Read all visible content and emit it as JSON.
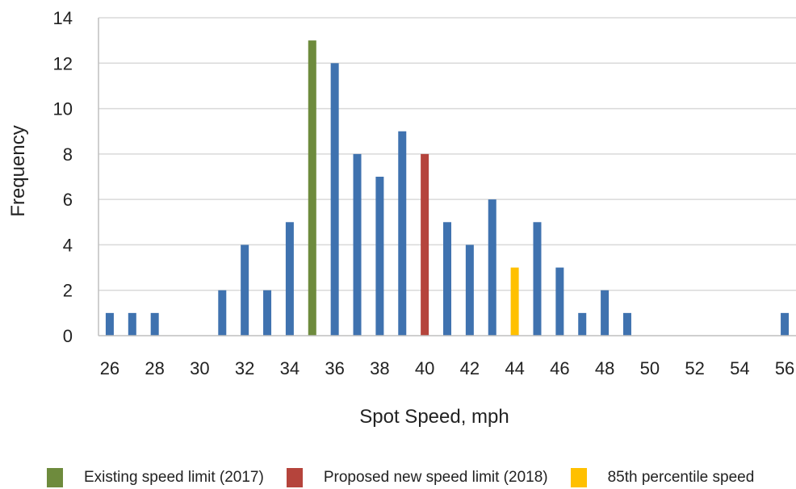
{
  "chart_data": {
    "type": "bar",
    "xlabel": "Spot Speed, mph",
    "ylabel": "Frequency",
    "ylim": [
      0,
      14
    ],
    "yticks": [
      0,
      2,
      4,
      6,
      8,
      10,
      12,
      14
    ],
    "xlim": [
      25.5,
      56.5
    ],
    "xticks": [
      26,
      28,
      30,
      32,
      34,
      36,
      38,
      40,
      42,
      44,
      46,
      48,
      50,
      52,
      54,
      56
    ],
    "grid": true,
    "legend_position": "bottom",
    "colors": {
      "default": "#3f72af",
      "existing": "#6e8b3d",
      "proposed": "#b5443c",
      "percentile": "#ffc000",
      "grid": "#d9d9d9",
      "axis": "#bfbfbf"
    },
    "bars": [
      {
        "x": 26,
        "y": 1,
        "cat": "default"
      },
      {
        "x": 27,
        "y": 1,
        "cat": "default"
      },
      {
        "x": 28,
        "y": 1,
        "cat": "default"
      },
      {
        "x": 31,
        "y": 2,
        "cat": "default"
      },
      {
        "x": 32,
        "y": 4,
        "cat": "default"
      },
      {
        "x": 33,
        "y": 2,
        "cat": "default"
      },
      {
        "x": 34,
        "y": 5,
        "cat": "default"
      },
      {
        "x": 35,
        "y": 13,
        "cat": "existing"
      },
      {
        "x": 36,
        "y": 12,
        "cat": "default"
      },
      {
        "x": 37,
        "y": 8,
        "cat": "default"
      },
      {
        "x": 38,
        "y": 7,
        "cat": "default"
      },
      {
        "x": 39,
        "y": 9,
        "cat": "default"
      },
      {
        "x": 40,
        "y": 8,
        "cat": "proposed"
      },
      {
        "x": 41,
        "y": 5,
        "cat": "default"
      },
      {
        "x": 42,
        "y": 4,
        "cat": "default"
      },
      {
        "x": 43,
        "y": 6,
        "cat": "default"
      },
      {
        "x": 44,
        "y": 3,
        "cat": "percentile"
      },
      {
        "x": 45,
        "y": 5,
        "cat": "default"
      },
      {
        "x": 46,
        "y": 3,
        "cat": "default"
      },
      {
        "x": 47,
        "y": 1,
        "cat": "default"
      },
      {
        "x": 48,
        "y": 2,
        "cat": "default"
      },
      {
        "x": 49,
        "y": 1,
        "cat": "default"
      },
      {
        "x": 56,
        "y": 1,
        "cat": "default"
      }
    ],
    "legend": [
      {
        "label": "Existing speed limit  (2017)",
        "cat": "existing"
      },
      {
        "label": "Proposed new speed limit  (2018)",
        "cat": "proposed"
      },
      {
        "label": "85th percentile speed",
        "cat": "percentile"
      }
    ]
  }
}
